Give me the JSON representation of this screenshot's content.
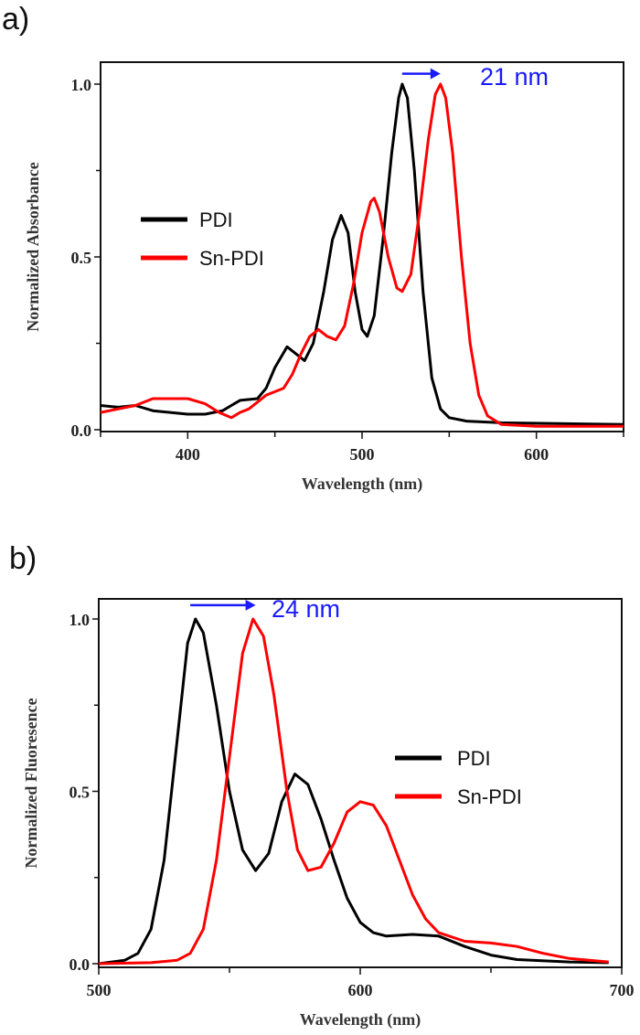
{
  "chart_data": [
    {
      "type": "line",
      "panel_label": "a)",
      "xlabel": "Wavelength (nm)",
      "ylabel": "Normalized Absorbance",
      "xlim": [
        350,
        650
      ],
      "ylim": [
        0,
        1.1
      ],
      "xticks": [
        400,
        500,
        600
      ],
      "xtick_labels": [
        "400",
        "500",
        "600"
      ],
      "yticks": [
        0.0,
        0.5,
        1.0
      ],
      "ytick_labels": [
        "0.0",
        "0.5",
        "1.0"
      ],
      "legend_position": "middle-left",
      "annotation": {
        "text": "21 nm",
        "arrow_from": 523,
        "arrow_to": 545,
        "y": 1.03
      },
      "series": [
        {
          "name": "PDI",
          "color": "#000000",
          "x": [
            350,
            360,
            370,
            380,
            390,
            400,
            410,
            420,
            425,
            430,
            440,
            445,
            450,
            457,
            462,
            467,
            472,
            478,
            483,
            488,
            492,
            496,
            500,
            503,
            507,
            512,
            517,
            521,
            523,
            526,
            530,
            535,
            540,
            545,
            550,
            560,
            580,
            650
          ],
          "y": [
            0.07,
            0.065,
            0.07,
            0.055,
            0.05,
            0.045,
            0.045,
            0.055,
            0.07,
            0.085,
            0.09,
            0.12,
            0.18,
            0.24,
            0.22,
            0.2,
            0.25,
            0.4,
            0.55,
            0.62,
            0.57,
            0.4,
            0.29,
            0.27,
            0.33,
            0.55,
            0.8,
            0.96,
            1.0,
            0.96,
            0.75,
            0.4,
            0.15,
            0.06,
            0.035,
            0.025,
            0.02,
            0.015
          ]
        },
        {
          "name": "Sn-PDI",
          "color": "#ff0000",
          "x": [
            350,
            360,
            370,
            380,
            390,
            400,
            410,
            418,
            425,
            430,
            435,
            440,
            445,
            450,
            455,
            460,
            465,
            470,
            475,
            480,
            485,
            490,
            495,
            500,
            505,
            507,
            510,
            515,
            520,
            523,
            528,
            533,
            538,
            542,
            545,
            548,
            552,
            557,
            562,
            567,
            572,
            580,
            600,
            650
          ],
          "y": [
            0.05,
            0.06,
            0.07,
            0.09,
            0.09,
            0.09,
            0.075,
            0.05,
            0.035,
            0.05,
            0.06,
            0.08,
            0.1,
            0.11,
            0.12,
            0.16,
            0.22,
            0.27,
            0.29,
            0.27,
            0.26,
            0.3,
            0.42,
            0.57,
            0.66,
            0.67,
            0.63,
            0.5,
            0.41,
            0.4,
            0.45,
            0.63,
            0.84,
            0.97,
            1.0,
            0.96,
            0.8,
            0.5,
            0.25,
            0.1,
            0.04,
            0.015,
            0.01,
            0.01
          ]
        }
      ]
    },
    {
      "type": "line",
      "panel_label": "b)",
      "xlabel": "Wavelength (nm)",
      "ylabel": "Normalized Fluoresence",
      "xlim": [
        500,
        700
      ],
      "ylim": [
        0,
        1.1
      ],
      "xticks": [
        500,
        600,
        700
      ],
      "xtick_labels": [
        "500",
        "600",
        "700"
      ],
      "yticks": [
        0.0,
        0.5,
        1.0
      ],
      "ytick_labels": [
        "0.0",
        "0.5",
        "1.0"
      ],
      "legend_position": "middle-right",
      "annotation": {
        "text": "24 nm",
        "arrow_from": 535,
        "arrow_to": 560,
        "y": 1.04
      },
      "series": [
        {
          "name": "PDI",
          "color": "#000000",
          "x": [
            500,
            510,
            515,
            520,
            525,
            530,
            534,
            537,
            540,
            545,
            550,
            555,
            560,
            565,
            570,
            575,
            580,
            585,
            590,
            595,
            600,
            605,
            610,
            620,
            630,
            640,
            650,
            660,
            680,
            695
          ],
          "y": [
            0,
            0.01,
            0.03,
            0.1,
            0.3,
            0.65,
            0.93,
            1.0,
            0.96,
            0.75,
            0.5,
            0.33,
            0.27,
            0.32,
            0.47,
            0.55,
            0.52,
            0.42,
            0.3,
            0.19,
            0.12,
            0.09,
            0.08,
            0.085,
            0.08,
            0.05,
            0.025,
            0.012,
            0.005,
            0.003
          ]
        },
        {
          "name": "Sn-PDI",
          "color": "#ff0000",
          "x": [
            500,
            520,
            530,
            535,
            540,
            545,
            550,
            555,
            559,
            563,
            567,
            572,
            576,
            580,
            585,
            590,
            595,
            600,
            605,
            610,
            615,
            620,
            625,
            630,
            640,
            650,
            660,
            670,
            680,
            695
          ],
          "y": [
            0,
            0.003,
            0.01,
            0.03,
            0.1,
            0.3,
            0.6,
            0.9,
            1.0,
            0.95,
            0.78,
            0.5,
            0.33,
            0.27,
            0.28,
            0.35,
            0.44,
            0.47,
            0.46,
            0.4,
            0.3,
            0.2,
            0.13,
            0.09,
            0.065,
            0.06,
            0.05,
            0.03,
            0.015,
            0.005
          ]
        }
      ]
    }
  ]
}
